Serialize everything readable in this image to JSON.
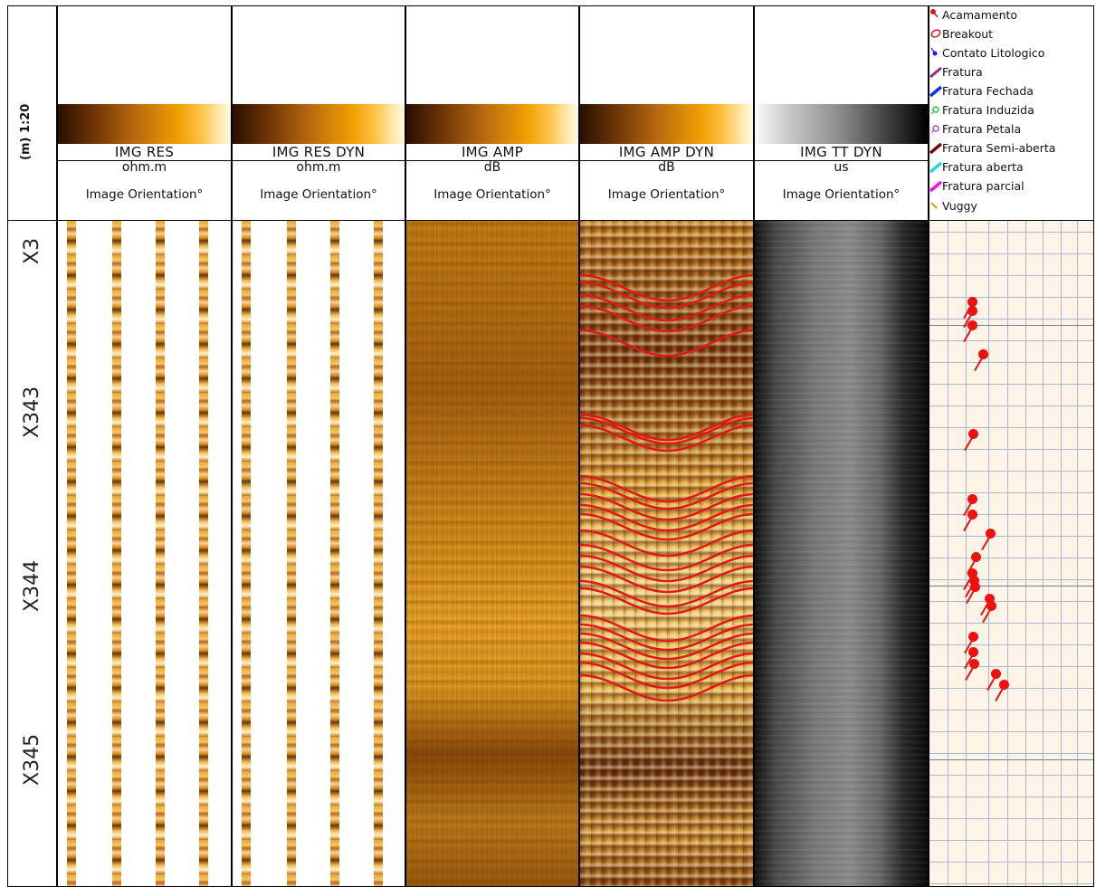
{
  "scale_label": "(m) 1:20",
  "columns": [
    {
      "name": "IMG RES",
      "unit": "ohm.m",
      "orientation": "Image Orientation°",
      "colormap": "copper"
    },
    {
      "name": "IMG RES DYN",
      "unit": "ohm.m",
      "orientation": "Image Orientation°",
      "colormap": "copper"
    },
    {
      "name": "IMG AMP",
      "unit": "dB",
      "orientation": "Image Orientation°",
      "colormap": "copper"
    },
    {
      "name": "IMG AMP DYN",
      "unit": "dB",
      "orientation": "Image Orientation°",
      "colormap": "copper"
    },
    {
      "name": "IMG TT DYN",
      "unit": "us",
      "orientation": "Image Orientation°",
      "colormap": "grayscale"
    }
  ],
  "legend": [
    {
      "label": "Acamamento",
      "color": "#e0141e",
      "icon": "tadpole-icon"
    },
    {
      "label": "Breakout",
      "color": "#e0141e",
      "icon": "breakout-icon"
    },
    {
      "label": "Contato Litologico",
      "color": "#1e1ee6",
      "icon": "tadpole-icon"
    },
    {
      "label": "Fratura",
      "color": "#a0288c",
      "icon": "fracture-icon"
    },
    {
      "label": "Fratura Fechada",
      "color": "#1432e6",
      "icon": "fracture-icon"
    },
    {
      "label": "Fratura Induzida",
      "color": "#28c850",
      "icon": "induced-fracture-icon"
    },
    {
      "label": "Fratura Petala",
      "color": "#a050c8",
      "icon": "petal-fracture-icon"
    },
    {
      "label": "Fratura Semi-aberta",
      "color": "#780a0a",
      "icon": "fracture-icon"
    },
    {
      "label": "Fratura aberta",
      "color": "#28d2d2",
      "icon": "fracture-icon"
    },
    {
      "label": "Fratura parcial",
      "color": "#f014e6",
      "icon": "fracture-icon"
    },
    {
      "label": "Vuggy",
      "color": "#e6a014",
      "icon": "vug-icon"
    }
  ],
  "depth_labels": [
    "X3",
    "X343",
    "X344",
    "X345"
  ],
  "dip_picks": [
    {
      "name": "Acamamento"
    },
    {
      "name": "Acamamento"
    },
    {
      "name": "Acamamento"
    },
    {
      "name": "Acamamento"
    },
    {
      "name": "Acamamento"
    },
    {
      "name": "Acamamento"
    },
    {
      "name": "Acamamento"
    },
    {
      "name": "Acamamento"
    },
    {
      "name": "Acamamento"
    },
    {
      "name": "Acamamento"
    },
    {
      "name": "Acamamento"
    },
    {
      "name": "Acamamento"
    },
    {
      "name": "Acamamento"
    },
    {
      "name": "Acamamento"
    },
    {
      "name": "Acamamento"
    },
    {
      "name": "Acamamento"
    },
    {
      "name": "Acamamento"
    },
    {
      "name": "Acamamento"
    },
    {
      "name": "Acamamento"
    },
    {
      "name": "Acamamento"
    }
  ],
  "colors": {
    "pick_line": "#e01818",
    "grid": "#a9b6cc",
    "dip_track_bg": "#fdf3e6"
  }
}
